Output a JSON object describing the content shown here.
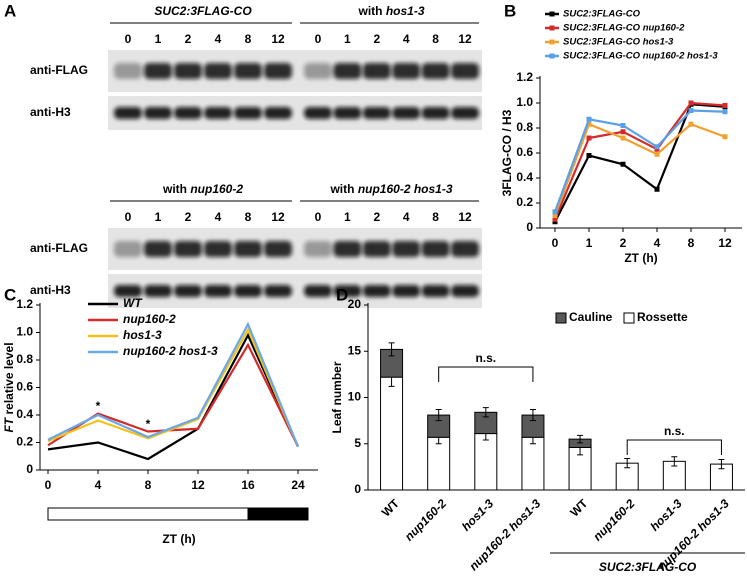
{
  "panel_a": {
    "label": "A",
    "blots": [
      {
        "groups": [
          {
            "name": "SUC2:3FLAG-CO"
          },
          {
            "prefix": "with",
            "name": "hos1-3"
          }
        ]
      },
      {
        "groups": [
          {
            "prefix": "with",
            "name": "nup160-2"
          },
          {
            "prefix": "with",
            "name": "nup160-2 hos1-3"
          }
        ]
      }
    ],
    "timepoints": [
      "0",
      "1",
      "2",
      "4",
      "8",
      "12"
    ],
    "rows": [
      "anti-FLAG",
      "anti-H3"
    ]
  },
  "chart_data": [
    {
      "panel_label": "B",
      "type": "line",
      "marker": "square",
      "xlabel": "ZT (h)",
      "ylabel": "3FLAG-CO / H3",
      "categories": [
        "0",
        "1",
        "2",
        "4",
        "8",
        "12"
      ],
      "ylim": [
        0,
        1.2
      ],
      "yticks": [
        0,
        0.2,
        0.4,
        0.6,
        0.8,
        {
          "value": 1,
          "label": "1.0"
        },
        1.2
      ],
      "series": [
        {
          "name": "SUC2:3FLAG-CO",
          "color": "#000000",
          "values": [
            0.05,
            0.58,
            0.51,
            0.31,
            0.99,
            0.97
          ]
        },
        {
          "name": "SUC2:3FLAG-CO nup160-2",
          "color": "#d42a2a",
          "values": [
            0.07,
            0.72,
            0.77,
            0.63,
            1.0,
            0.98
          ]
        },
        {
          "name": "SUC2:3FLAG-CO hos1-3",
          "color": "#f0a030",
          "values": [
            0.1,
            0.83,
            0.72,
            0.59,
            0.83,
            0.73
          ]
        },
        {
          "name": "SUC2:3FLAG-CO nup160-2 hos1-3",
          "color": "#5aa0e6",
          "values": [
            0.13,
            0.87,
            0.82,
            0.65,
            0.94,
            0.93
          ]
        }
      ]
    },
    {
      "panel_label": "C",
      "type": "line",
      "xlabel": "ZT (h)",
      "ylabel_gene": "FT",
      "ylabel": "relative level",
      "categories": [
        "0",
        "4",
        "8",
        "12",
        "16",
        "24"
      ],
      "ylim": [
        0,
        1.2
      ],
      "yticks": [
        0,
        0.2,
        0.4,
        0.6,
        0.8,
        {
          "value": 1,
          "label": "1.0"
        },
        1.2
      ],
      "series": [
        {
          "name": "WT",
          "color": "#000000",
          "values": [
            0.15,
            0.2,
            0.08,
            0.3,
            0.98,
            0.17
          ]
        },
        {
          "name": "nup160-2",
          "color": "#d42a2a",
          "values": [
            0.18,
            0.41,
            0.28,
            0.3,
            0.91,
            0.17
          ]
        },
        {
          "name": "hos1-3",
          "color": "#f2c21a",
          "values": [
            0.21,
            0.36,
            0.23,
            0.37,
            1.02,
            0.17
          ]
        },
        {
          "name": "nup160-2 hos1-3",
          "color": "#6aa8e8",
          "values": [
            0.22,
            0.4,
            0.24,
            0.38,
            1.06,
            0.17
          ]
        }
      ],
      "annotations": [
        "*",
        "*"
      ]
    },
    {
      "panel_label": "D",
      "type": "stacked_bar",
      "ylabel": "Leaf number",
      "categories": [
        "WT",
        "nup160-2",
        "hos1-3",
        "nup160-2 hos1-3",
        "WT",
        "nup160-2",
        "hos1-3",
        "nup160-2 hos1-3"
      ],
      "ylim": [
        0,
        20
      ],
      "yticks": [
        0,
        5,
        10,
        15,
        20
      ],
      "series": [
        {
          "name": "Rossette",
          "color": "#ffffff",
          "values": [
            12.2,
            5.7,
            6.1,
            5.7,
            4.6,
            2.9,
            3.1,
            2.8
          ],
          "errors": [
            1.0,
            0.7,
            0.7,
            0.7,
            0.8,
            0.5,
            0.5,
            0.5
          ]
        },
        {
          "name": "Cauline",
          "color": "#595959",
          "values": [
            3.0,
            2.4,
            2.3,
            2.4,
            0.9,
            0,
            0,
            0
          ],
          "errors": [
            0.7,
            0.6,
            0.5,
            0.6,
            0.4,
            null,
            null,
            null
          ]
        }
      ],
      "annotations": [
        "n.s.",
        "n.s."
      ],
      "group_label": "SUC2:3FLAG-CO"
    }
  ]
}
